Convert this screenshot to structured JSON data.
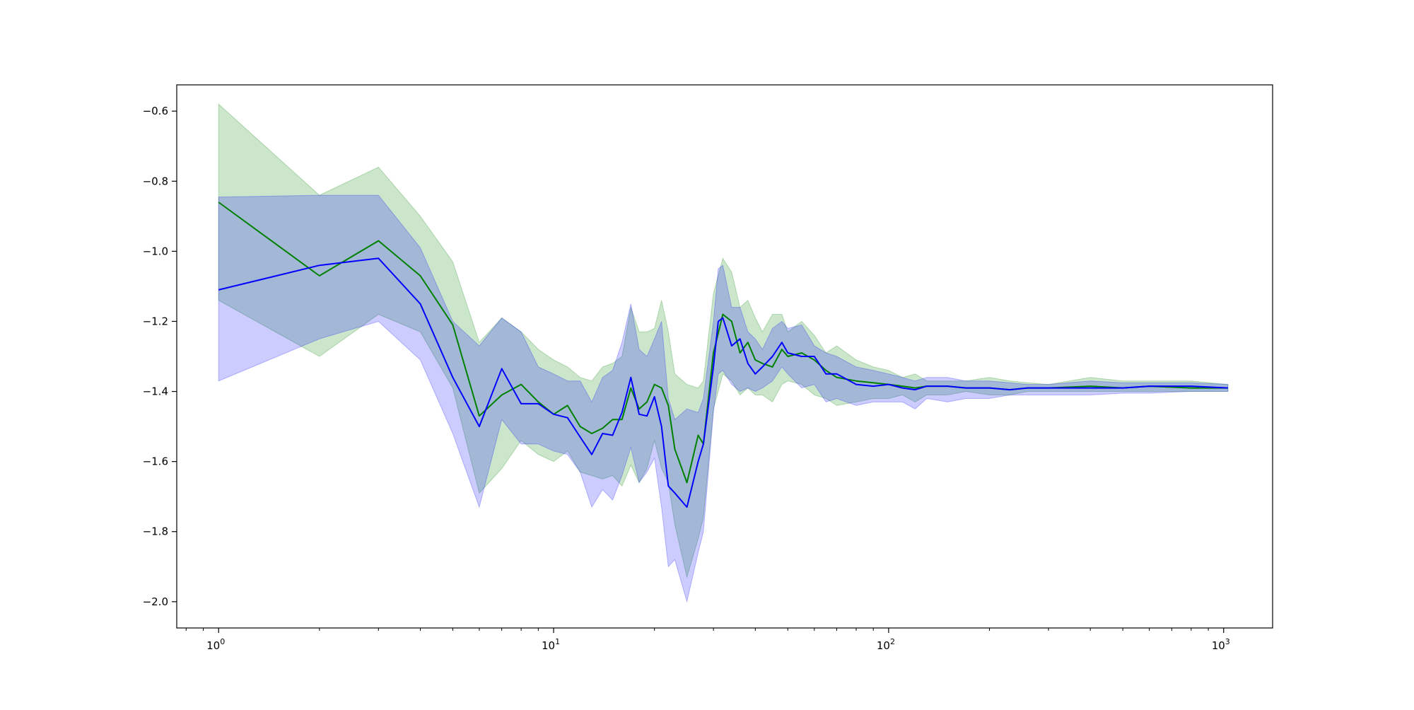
{
  "chart_data": {
    "type": "line",
    "xscale": "log",
    "xlim": [
      0.75,
      1400
    ],
    "ylim": [
      -2.075,
      -0.525
    ],
    "grid": false,
    "legend": "none",
    "xticks": [
      {
        "value": 1,
        "base": "10",
        "exp": "0"
      },
      {
        "value": 10,
        "base": "10",
        "exp": "1"
      },
      {
        "value": 100,
        "base": "10",
        "exp": "2"
      },
      {
        "value": 1000,
        "base": "10",
        "exp": "3"
      }
    ],
    "yticks": [
      {
        "value": -0.6,
        "label": "−0.6"
      },
      {
        "value": -0.8,
        "label": "−0.8"
      },
      {
        "value": -1.0,
        "label": "−1.0"
      },
      {
        "value": -1.2,
        "label": "−1.2"
      },
      {
        "value": -1.4,
        "label": "−1.4"
      },
      {
        "value": -1.6,
        "label": "−1.6"
      },
      {
        "value": -1.8,
        "label": "−1.8"
      },
      {
        "value": -2.0,
        "label": "−2.0"
      }
    ],
    "series": [
      {
        "color": "#008000",
        "band_color": "#008000",
        "x": [
          1,
          2,
          3,
          4,
          5,
          6,
          7,
          8,
          9,
          10,
          11,
          12,
          13,
          14,
          15,
          16,
          17,
          18,
          19,
          20,
          21,
          22,
          23,
          25,
          27,
          28,
          30,
          32,
          34,
          36,
          38,
          40,
          42,
          45,
          48,
          50,
          55,
          60,
          65,
          70,
          80,
          90,
          100,
          110,
          120,
          130,
          150,
          170,
          200,
          230,
          260,
          300,
          400,
          500,
          600,
          800,
          1030
        ],
        "y": [
          -0.86,
          -1.07,
          -0.97,
          -1.07,
          -1.21,
          -1.47,
          -1.41,
          -1.38,
          -1.43,
          -1.465,
          -1.44,
          -1.5,
          -1.52,
          -1.505,
          -1.48,
          -1.48,
          -1.39,
          -1.45,
          -1.43,
          -1.38,
          -1.39,
          -1.44,
          -1.565,
          -1.66,
          -1.525,
          -1.55,
          -1.29,
          -1.18,
          -1.2,
          -1.29,
          -1.26,
          -1.31,
          -1.32,
          -1.33,
          -1.28,
          -1.3,
          -1.29,
          -1.31,
          -1.34,
          -1.36,
          -1.37,
          -1.375,
          -1.38,
          -1.385,
          -1.39,
          -1.385,
          -1.385,
          -1.39,
          -1.39,
          -1.395,
          -1.39,
          -1.39,
          -1.385,
          -1.39,
          -1.385,
          -1.39,
          -1.39
        ],
        "upper": [
          -0.58,
          -0.84,
          -0.76,
          -0.9,
          -1.03,
          -1.26,
          -1.19,
          -1.23,
          -1.28,
          -1.31,
          -1.33,
          -1.36,
          -1.37,
          -1.33,
          -1.32,
          -1.3,
          -1.16,
          -1.23,
          -1.23,
          -1.22,
          -1.14,
          -1.23,
          -1.35,
          -1.38,
          -1.39,
          -1.37,
          -1.12,
          -1.02,
          -1.06,
          -1.16,
          -1.14,
          -1.19,
          -1.23,
          -1.18,
          -1.18,
          -1.23,
          -1.2,
          -1.24,
          -1.29,
          -1.27,
          -1.31,
          -1.33,
          -1.34,
          -1.36,
          -1.35,
          -1.37,
          -1.37,
          -1.37,
          -1.36,
          -1.37,
          -1.375,
          -1.38,
          -1.36,
          -1.37,
          -1.37,
          -1.37,
          -1.38
        ],
        "lower": [
          -1.14,
          -1.3,
          -1.18,
          -1.23,
          -1.39,
          -1.69,
          -1.62,
          -1.54,
          -1.58,
          -1.6,
          -1.57,
          -1.63,
          -1.64,
          -1.65,
          -1.64,
          -1.67,
          -1.61,
          -1.66,
          -1.62,
          -1.54,
          -1.62,
          -1.66,
          -1.78,
          -1.93,
          -1.82,
          -1.76,
          -1.45,
          -1.35,
          -1.37,
          -1.41,
          -1.39,
          -1.41,
          -1.41,
          -1.43,
          -1.38,
          -1.37,
          -1.38,
          -1.41,
          -1.42,
          -1.44,
          -1.43,
          -1.42,
          -1.42,
          -1.41,
          -1.43,
          -1.41,
          -1.41,
          -1.4,
          -1.41,
          -1.41,
          -1.4,
          -1.4,
          -1.4,
          -1.4,
          -1.4,
          -1.4,
          -1.4
        ]
      },
      {
        "color": "#0000ff",
        "band_color": "#0000ff",
        "x": [
          1,
          2,
          3,
          4,
          5,
          6,
          7,
          8,
          9,
          10,
          11,
          12,
          13,
          14,
          15,
          16,
          17,
          18,
          19,
          20,
          21,
          22,
          23,
          25,
          27,
          28,
          30,
          31,
          32,
          34,
          36,
          38,
          40,
          42,
          45,
          48,
          50,
          55,
          60,
          65,
          70,
          80,
          90,
          100,
          110,
          120,
          130,
          150,
          170,
          200,
          230,
          260,
          300,
          400,
          500,
          600,
          800,
          1030
        ],
        "y": [
          -1.11,
          -1.04,
          -1.02,
          -1.15,
          -1.36,
          -1.5,
          -1.335,
          -1.435,
          -1.435,
          -1.465,
          -1.475,
          -1.53,
          -1.58,
          -1.52,
          -1.525,
          -1.46,
          -1.36,
          -1.465,
          -1.47,
          -1.415,
          -1.5,
          -1.67,
          -1.69,
          -1.73,
          -1.6,
          -1.55,
          -1.33,
          -1.2,
          -1.19,
          -1.27,
          -1.25,
          -1.32,
          -1.35,
          -1.33,
          -1.3,
          -1.26,
          -1.29,
          -1.3,
          -1.3,
          -1.35,
          -1.35,
          -1.38,
          -1.385,
          -1.38,
          -1.39,
          -1.395,
          -1.385,
          -1.385,
          -1.39,
          -1.39,
          -1.395,
          -1.39,
          -1.39,
          -1.39,
          -1.39,
          -1.385,
          -1.385,
          -1.39
        ],
        "upper": [
          -0.845,
          -0.84,
          -0.84,
          -0.99,
          -1.2,
          -1.27,
          -1.19,
          -1.23,
          -1.33,
          -1.35,
          -1.37,
          -1.37,
          -1.43,
          -1.36,
          -1.34,
          -1.26,
          -1.15,
          -1.28,
          -1.3,
          -1.25,
          -1.2,
          -1.42,
          -1.48,
          -1.45,
          -1.46,
          -1.42,
          -1.2,
          -1.05,
          -1.04,
          -1.16,
          -1.16,
          -1.23,
          -1.25,
          -1.28,
          -1.22,
          -1.2,
          -1.22,
          -1.21,
          -1.27,
          -1.29,
          -1.3,
          -1.33,
          -1.34,
          -1.35,
          -1.36,
          -1.37,
          -1.36,
          -1.36,
          -1.37,
          -1.37,
          -1.375,
          -1.38,
          -1.38,
          -1.37,
          -1.375,
          -1.375,
          -1.375,
          -1.38
        ],
        "lower": [
          -1.37,
          -1.25,
          -1.2,
          -1.31,
          -1.52,
          -1.73,
          -1.48,
          -1.55,
          -1.55,
          -1.57,
          -1.58,
          -1.63,
          -1.73,
          -1.68,
          -1.71,
          -1.64,
          -1.56,
          -1.66,
          -1.63,
          -1.59,
          -1.73,
          -1.9,
          -1.88,
          -2.0,
          -1.86,
          -1.8,
          -1.46,
          -1.35,
          -1.34,
          -1.38,
          -1.4,
          -1.39,
          -1.4,
          -1.39,
          -1.37,
          -1.33,
          -1.35,
          -1.39,
          -1.38,
          -1.43,
          -1.42,
          -1.44,
          -1.43,
          -1.43,
          -1.43,
          -1.45,
          -1.42,
          -1.43,
          -1.42,
          -1.42,
          -1.41,
          -1.41,
          -1.41,
          -1.41,
          -1.405,
          -1.405,
          -1.4,
          -1.4
        ]
      }
    ]
  }
}
